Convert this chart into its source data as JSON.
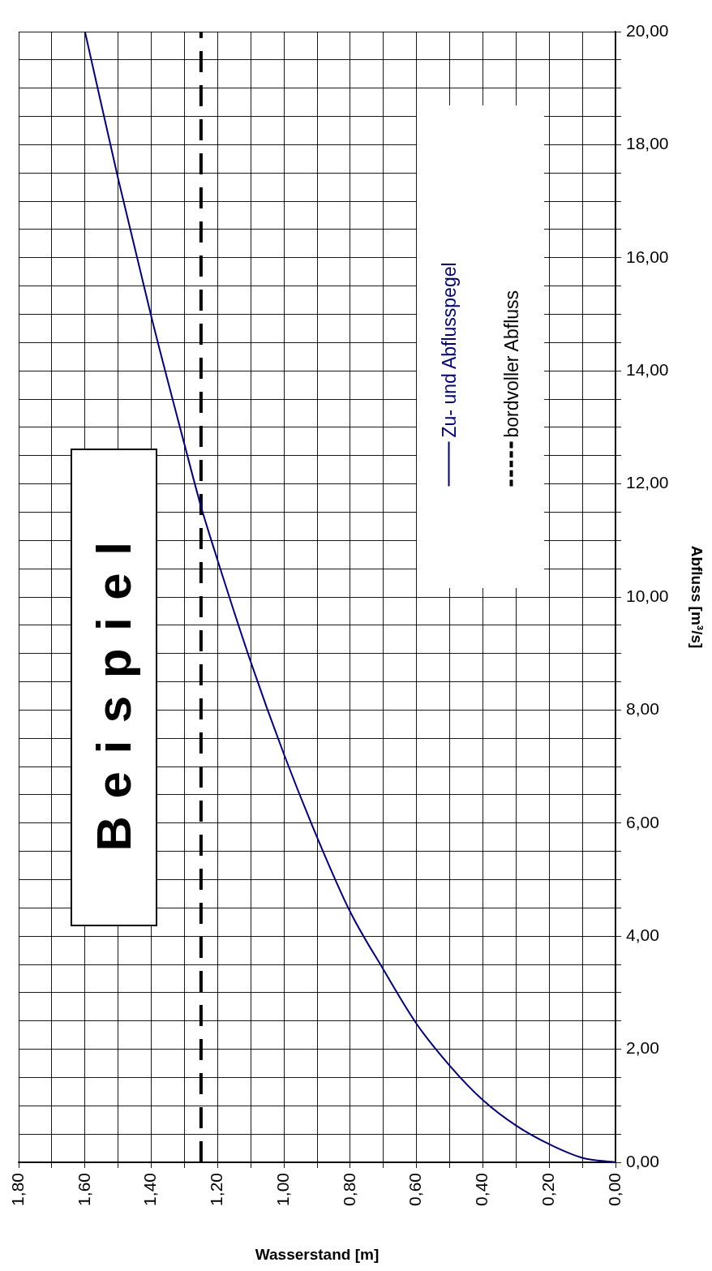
{
  "chart_data": {
    "type": "line",
    "xlabel": "Wasserstand [m]",
    "ylabel": "Abfluss [m³/s]",
    "annotations": [
      "Beispiel"
    ],
    "legend": "top right",
    "marker": "none",
    "line_style": "solid",
    "grid": true,
    "xlim": [
      1.8,
      0
    ],
    "ylim": [
      0,
      20
    ],
    "xticks": [
      {
        "value": 1.8,
        "label": "1,80"
      },
      {
        "value": 1.7,
        "label": null
      },
      {
        "value": 1.6,
        "label": "1,60"
      },
      {
        "value": 1.5,
        "label": null
      },
      {
        "value": 1.4,
        "label": "1,40"
      },
      {
        "value": 1.3,
        "label": null
      },
      {
        "value": 1.2,
        "label": "1,20"
      },
      {
        "value": 1.1,
        "label": null
      },
      {
        "value": 1,
        "label": "1,00"
      },
      {
        "value": 0.9,
        "label": null
      },
      {
        "value": 0.8,
        "label": "0,80"
      },
      {
        "value": 0.7,
        "label": null
      },
      {
        "value": 0.6,
        "label": "0,60"
      },
      {
        "value": 0.5,
        "label": null
      },
      {
        "value": 0.4,
        "label": "0,40"
      },
      {
        "value": 0.3,
        "label": null
      },
      {
        "value": 0.2,
        "label": "0,20"
      },
      {
        "value": 0.1,
        "label": null
      },
      {
        "value": 0,
        "label": "0,00"
      }
    ],
    "yticks": [
      {
        "value": 0,
        "label": "0,00"
      },
      {
        "value": 0.5,
        "label": null
      },
      {
        "value": 1,
        "label": null
      },
      {
        "value": 1.5,
        "label": null
      },
      {
        "value": 2,
        "label": "2,00"
      },
      {
        "value": 2.5,
        "label": null
      },
      {
        "value": 3,
        "label": null
      },
      {
        "value": 3.5,
        "label": null
      },
      {
        "value": 4,
        "label": "4,00"
      },
      {
        "value": 4.5,
        "label": null
      },
      {
        "value": 5,
        "label": null
      },
      {
        "value": 5.5,
        "label": null
      },
      {
        "value": 6,
        "label": "6,00"
      },
      {
        "value": 6.5,
        "label": null
      },
      {
        "value": 7,
        "label": null
      },
      {
        "value": 7.5,
        "label": null
      },
      {
        "value": 8,
        "label": "8,00"
      },
      {
        "value": 8.5,
        "label": null
      },
      {
        "value": 9,
        "label": null
      },
      {
        "value": 9.5,
        "label": null
      },
      {
        "value": 10,
        "label": "10,00"
      },
      {
        "value": 10.5,
        "label": null
      },
      {
        "value": 11,
        "label": null
      },
      {
        "value": 11.5,
        "label": null
      },
      {
        "value": 12,
        "label": "12,00"
      },
      {
        "value": 12.5,
        "label": null
      },
      {
        "value": 13,
        "label": null
      },
      {
        "value": 13.5,
        "label": null
      },
      {
        "value": 14,
        "label": "14,00"
      },
      {
        "value": 14.5,
        "label": null
      },
      {
        "value": 15,
        "label": null
      },
      {
        "value": 15.5,
        "label": null
      },
      {
        "value": 16,
        "label": "16,00"
      },
      {
        "value": 16.5,
        "label": null
      },
      {
        "value": 17,
        "label": null
      },
      {
        "value": 17.5,
        "label": null
      },
      {
        "value": 18,
        "label": "18,00"
      },
      {
        "value": 18.5,
        "label": null
      },
      {
        "value": 19,
        "label": null
      },
      {
        "value": 19.5,
        "label": null
      },
      {
        "value": 20,
        "label": "20,00"
      }
    ],
    "ref_lines": [
      {
        "axis": "x",
        "value": 1.25,
        "label": "bordvoller Abfluss",
        "color": "#000000",
        "line_style": "dashed"
      }
    ],
    "series": [
      {
        "name": "Zu- und Abflusspegel",
        "color": "#000080",
        "x": [
          0,
          0.1,
          0.2,
          0.3,
          0.4,
          0.5,
          0.6,
          0.7,
          0.8,
          0.9,
          1.0,
          1.1,
          1.2,
          1.25,
          1.3,
          1.4,
          1.5,
          1.6
        ],
        "values": [
          0,
          0.08,
          0.32,
          0.65,
          1.1,
          1.71,
          2.45,
          3.41,
          4.43,
          5.75,
          7.22,
          8.85,
          10.65,
          11.6,
          12.7,
          14.96,
          17.4,
          20
        ]
      }
    ]
  }
}
